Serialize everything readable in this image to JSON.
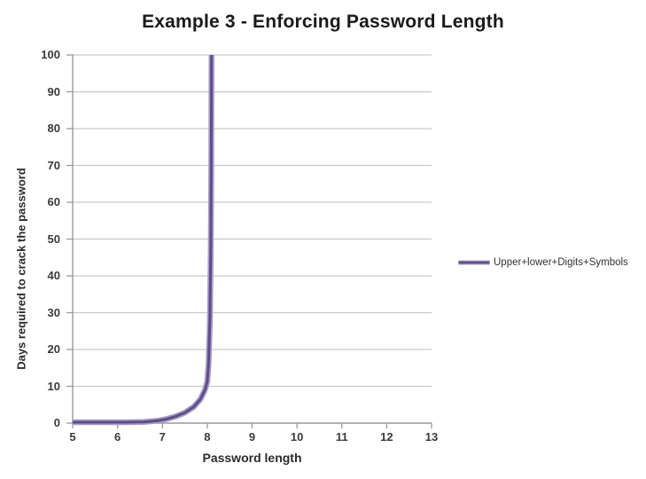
{
  "chart_data": {
    "type": "line",
    "title": "Example 3 - Enforcing Password Length",
    "xlabel": "Password length",
    "ylabel": "Days required to crack the password",
    "xlim": [
      5,
      13
    ],
    "ylim": [
      0,
      100
    ],
    "x_ticks": [
      5,
      6,
      7,
      8,
      9,
      10,
      11,
      12,
      13
    ],
    "y_ticks": [
      0,
      10,
      20,
      30,
      40,
      50,
      60,
      70,
      80,
      90,
      100
    ],
    "grid": "horizontal",
    "legend_position": "right",
    "colors": {
      "series_line": "#7A68A6",
      "series_line_dark": "#5E4D87",
      "series_line_light": "#A79BC7",
      "gridline": "#C9C9C9",
      "axis": "#9A9A9A",
      "text": "#3A3A3A"
    },
    "series": [
      {
        "name": "Upper+lower+Digits+Symbols",
        "key_points": [
          [
            5,
            0
          ],
          [
            6,
            0
          ],
          [
            7,
            0.5
          ],
          [
            7.5,
            2.5
          ],
          [
            8,
            10
          ],
          [
            8.1,
            100
          ]
        ],
        "note": "Curve exits the top of the plot at x ≈ 8.1; values beyond are clipped at the y-axis maximum of 100.",
        "curve_samples": [
          [
            5,
            0
          ],
          [
            5.6,
            0
          ],
          [
            6.2,
            0
          ],
          [
            6.6,
            0.1
          ],
          [
            6.9,
            0.4
          ],
          [
            7.1,
            0.9
          ],
          [
            7.3,
            1.6
          ],
          [
            7.5,
            2.6
          ],
          [
            7.7,
            4.2
          ],
          [
            7.85,
            6.3
          ],
          [
            7.95,
            8.8
          ],
          [
            8.0,
            11
          ],
          [
            8.03,
            16
          ],
          [
            8.06,
            28
          ],
          [
            8.08,
            48
          ],
          [
            8.09,
            70
          ],
          [
            8.095,
            100
          ]
        ]
      }
    ]
  }
}
